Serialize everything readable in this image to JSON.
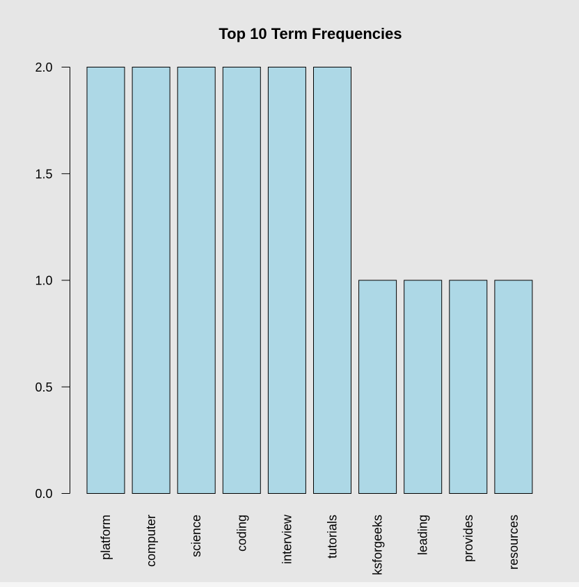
{
  "chart_data": {
    "type": "bar",
    "title": "Top 10 Term Frequencies",
    "xlabel": "",
    "ylabel": "",
    "categories": [
      "platform",
      "computer",
      "science",
      "coding",
      "interview",
      "tutorials",
      "ksforgeeks",
      "leading",
      "provides",
      "resources"
    ],
    "values": [
      2,
      2,
      2,
      2,
      2,
      2,
      1,
      1,
      1,
      1
    ],
    "ylim": [
      0,
      2
    ],
    "yticks": [
      "0.0",
      "0.5",
      "1.0",
      "1.5",
      "2.0"
    ],
    "grid": false,
    "bar_color": "#add8e6",
    "bar_border_color": "#000000",
    "background_color": "#e6e6e6",
    "category_label_orientation": "vertical"
  }
}
